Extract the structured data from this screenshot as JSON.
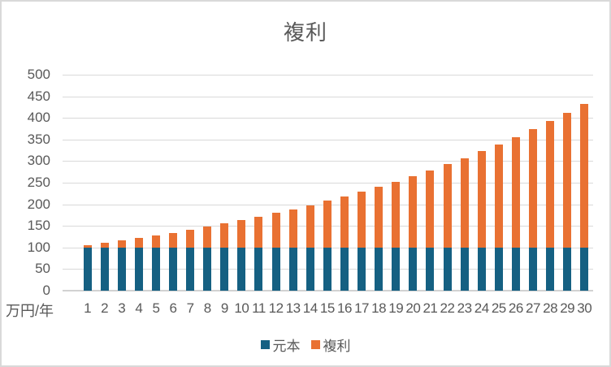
{
  "window": {
    "background": "#FFFFFF",
    "border_color": "#D9D9D9",
    "text_color": "#595959",
    "gridline_color": "#D9D9D9"
  },
  "chart_data": {
    "type": "bar",
    "stacked": true,
    "title": "複利",
    "axis_unit_label": "万円/年",
    "categories": [
      "1",
      "2",
      "3",
      "4",
      "5",
      "6",
      "7",
      "8",
      "9",
      "10",
      "11",
      "12",
      "13",
      "14",
      "15",
      "16",
      "17",
      "18",
      "19",
      "20",
      "21",
      "22",
      "23",
      "24",
      "25",
      "26",
      "27",
      "28",
      "29",
      "30"
    ],
    "series": [
      {
        "name": "元本",
        "color": "#156082",
        "values": [
          100,
          100,
          100,
          100,
          100,
          100,
          100,
          100,
          100,
          100,
          100,
          100,
          100,
          100,
          100,
          100,
          100,
          100,
          100,
          100,
          100,
          100,
          100,
          100,
          100,
          100,
          100,
          100,
          100,
          100
        ]
      },
      {
        "name": "複利",
        "color": "#E97132",
        "values": [
          5.0,
          10.25,
          15.76,
          21.55,
          27.63,
          34.01,
          40.71,
          47.75,
          55.13,
          62.89,
          71.03,
          79.59,
          88.56,
          97.99,
          107.89,
          118.29,
          129.2,
          140.66,
          152.7,
          165.33,
          178.6,
          192.53,
          207.15,
          222.51,
          238.64,
          255.57,
          273.35,
          292.01,
          311.61,
          332.19
        ]
      }
    ],
    "ylim": [
      0,
      500
    ],
    "ytick_step": 50,
    "grid": true,
    "legend_position": "bottom",
    "legend": [
      "元本",
      "複利"
    ]
  }
}
